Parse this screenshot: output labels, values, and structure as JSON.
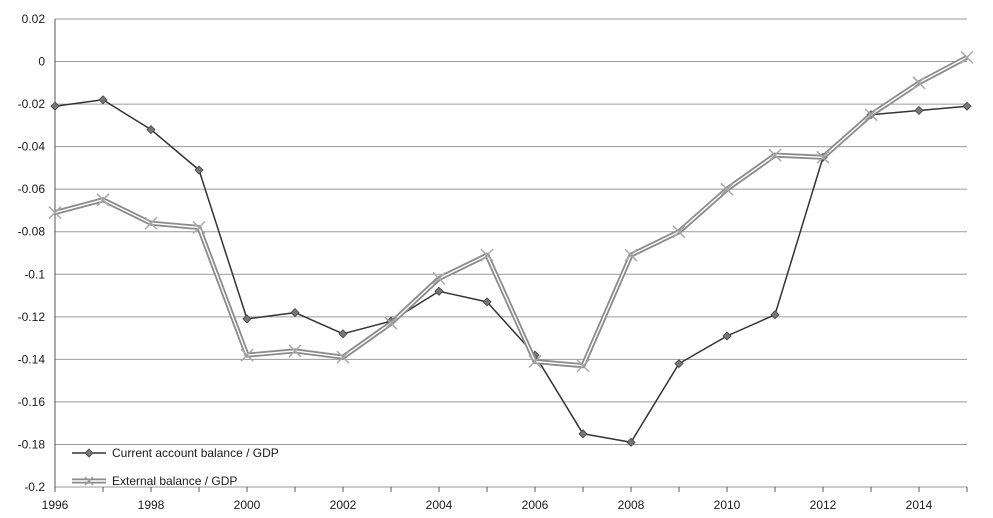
{
  "chart_data": {
    "type": "line",
    "title": "",
    "xlabel": "",
    "ylabel": "",
    "x": [
      1996,
      1997,
      1998,
      1999,
      2000,
      2001,
      2002,
      2003,
      2004,
      2005,
      2006,
      2007,
      2008,
      2009,
      2010,
      2011,
      2012,
      2013,
      2014,
      2015
    ],
    "xlim": [
      1996,
      2015
    ],
    "ylim": [
      -0.2,
      0.02
    ],
    "x_ticks": [
      1996,
      1998,
      2000,
      2002,
      2004,
      2006,
      2008,
      2010,
      2012,
      2014
    ],
    "x_tick_labels": [
      "1996",
      "1998",
      "2000",
      "2002",
      "2004",
      "2006",
      "2008",
      "2010",
      "2012",
      "2014"
    ],
    "y_ticks": [
      0.02,
      0,
      -0.02,
      -0.04,
      -0.06,
      -0.08,
      -0.1,
      -0.12,
      -0.14,
      -0.16,
      -0.18,
      -0.2
    ],
    "y_tick_labels": [
      "0.02",
      "0",
      "-0.02",
      "-0.04",
      "-0.06",
      "-0.08",
      "-0.1",
      "-0.12",
      "-0.14",
      "-0.16",
      "-0.18",
      "-0.2"
    ],
    "grid": "horizontal",
    "legend_position": "bottom-left",
    "series": [
      {
        "name": "Current account balance / GDP",
        "color": "#333333",
        "marker": "diamond",
        "values": [
          -0.021,
          -0.018,
          -0.032,
          -0.051,
          -0.121,
          -0.118,
          -0.128,
          -0.122,
          -0.108,
          -0.113,
          -0.138,
          -0.175,
          -0.179,
          -0.142,
          -0.129,
          -0.119,
          -0.045,
          -0.025,
          -0.023,
          -0.021
        ]
      },
      {
        "name": "External balance / GDP",
        "color": "#8a8a8a",
        "marker": "x",
        "values": [
          -0.071,
          -0.065,
          -0.076,
          -0.078,
          -0.138,
          -0.136,
          -0.139,
          -0.123,
          -0.102,
          -0.091,
          -0.141,
          -0.143,
          -0.091,
          -0.08,
          -0.06,
          -0.044,
          -0.045,
          -0.025,
          -0.01,
          0.002
        ]
      }
    ]
  }
}
